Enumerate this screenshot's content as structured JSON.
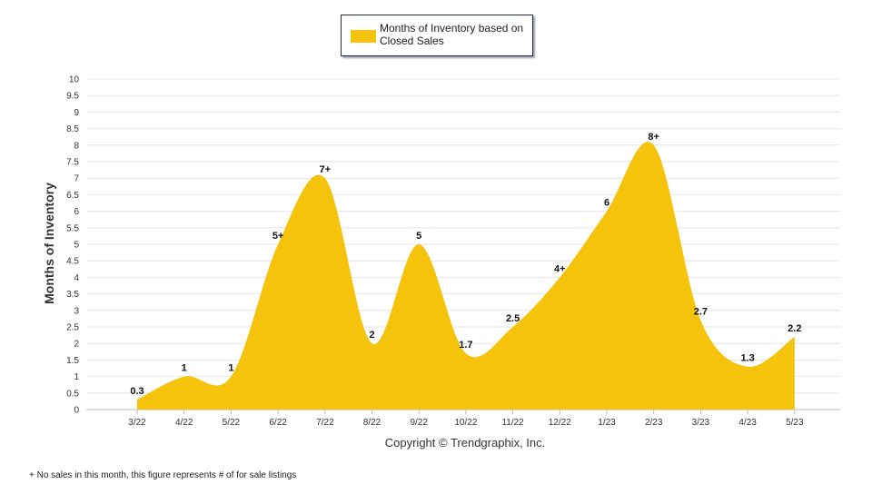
{
  "legend": {
    "label": "Months of Inventory based on Closed Sales"
  },
  "copyright": "Copyright © Trendgraphix, Inc.",
  "footnote": "+ No sales in this month, this figure represents # of for sale listings",
  "colors": {
    "area": "#f5c20c",
    "grid": "#e6e6e6",
    "axis": "#bbbbbb",
    "text": "#333333"
  },
  "chart_data": {
    "type": "area",
    "title": "",
    "xlabel": "",
    "ylabel": "Months of Inventory",
    "ylim": [
      0,
      10
    ],
    "yticks": [
      "0",
      "0.5",
      "1",
      "1.5",
      "2",
      "2.5",
      "3",
      "3.5",
      "4",
      "4.5",
      "5",
      "5.5",
      "6",
      "6.5",
      "7",
      "7.5",
      "8",
      "8.5",
      "9",
      "9.5",
      "10"
    ],
    "grid": true,
    "legend_position": "top-center",
    "categories": [
      "3/22",
      "4/22",
      "5/22",
      "6/22",
      "7/22",
      "8/22",
      "9/22",
      "10/22",
      "11/22",
      "12/22",
      "1/23",
      "2/23",
      "3/23",
      "4/23",
      "5/23"
    ],
    "series": [
      {
        "name": "Months of Inventory based on Closed Sales",
        "values": [
          0.3,
          1,
          1,
          5,
          7,
          2,
          5,
          1.7,
          2.5,
          4,
          6,
          8,
          2.7,
          1.3,
          2.2
        ],
        "labels": [
          "0.3",
          "1",
          "1",
          "5+",
          "7+",
          "2",
          "5",
          "1.7",
          "2.5",
          "4+",
          "6",
          "8+",
          "2.7",
          "1.3",
          "2.2"
        ]
      }
    ]
  }
}
